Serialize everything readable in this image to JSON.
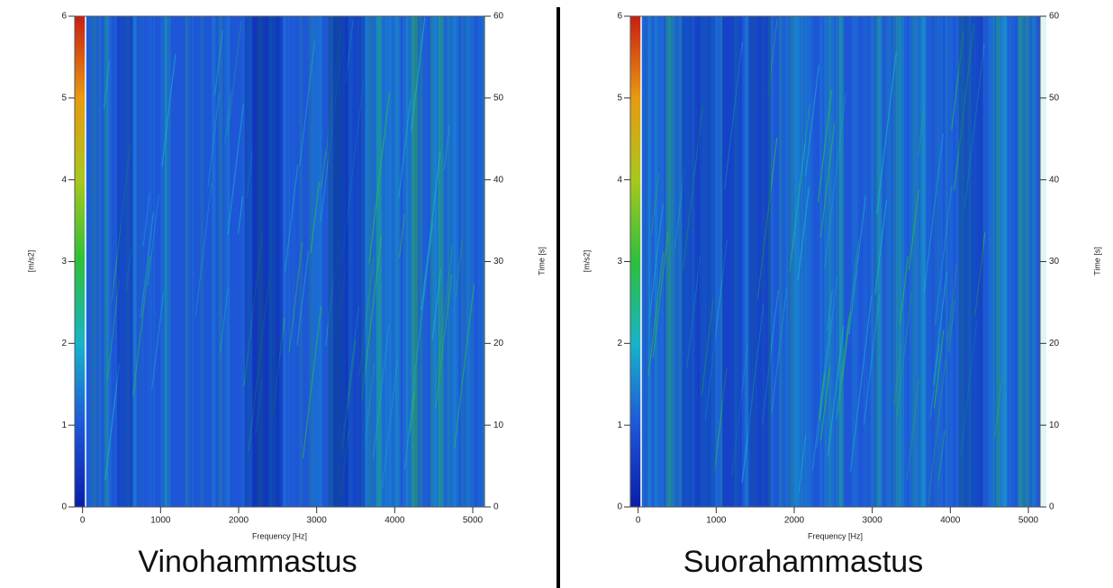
{
  "chart_data": [
    {
      "type": "spectrogram",
      "title": "Vinohammastus",
      "xlabel": "Frequency [Hz]",
      "ylabel": "[m/s2]",
      "y2label": "Time [s]",
      "xlim": [
        -100,
        5150
      ],
      "xticks": [
        0,
        1000,
        2000,
        3000,
        4000,
        5000
      ],
      "ylim": [
        0,
        6
      ],
      "yticks": [
        0,
        1,
        2,
        3,
        4,
        5,
        6
      ],
      "y2lim": [
        0,
        60
      ],
      "y2ticks": [
        0,
        10,
        20,
        30,
        40,
        50,
        60
      ],
      "colormap": [
        "#0a1ea8",
        "#1e56d8",
        "#17b4c8",
        "#2cc03a",
        "#a8c81e",
        "#e89a10",
        "#c81e14"
      ]
    },
    {
      "type": "spectrogram",
      "title": "Suorahammastus",
      "xlabel": "Frequency [Hz]",
      "ylabel": "[m/s2]",
      "y2label": "Time [s]",
      "xlim": [
        -100,
        5150
      ],
      "xticks": [
        0,
        1000,
        2000,
        3000,
        4000,
        5000
      ],
      "ylim": [
        0,
        6
      ],
      "yticks": [
        0,
        1,
        2,
        3,
        4,
        5,
        6
      ],
      "y2lim": [
        0,
        60
      ],
      "y2ticks": [
        0,
        10,
        20,
        30,
        40,
        50,
        60
      ],
      "colormap": [
        "#0a1ea8",
        "#1e56d8",
        "#17b4c8",
        "#2cc03a",
        "#a8c81e",
        "#e89a10",
        "#c81e14"
      ]
    }
  ]
}
